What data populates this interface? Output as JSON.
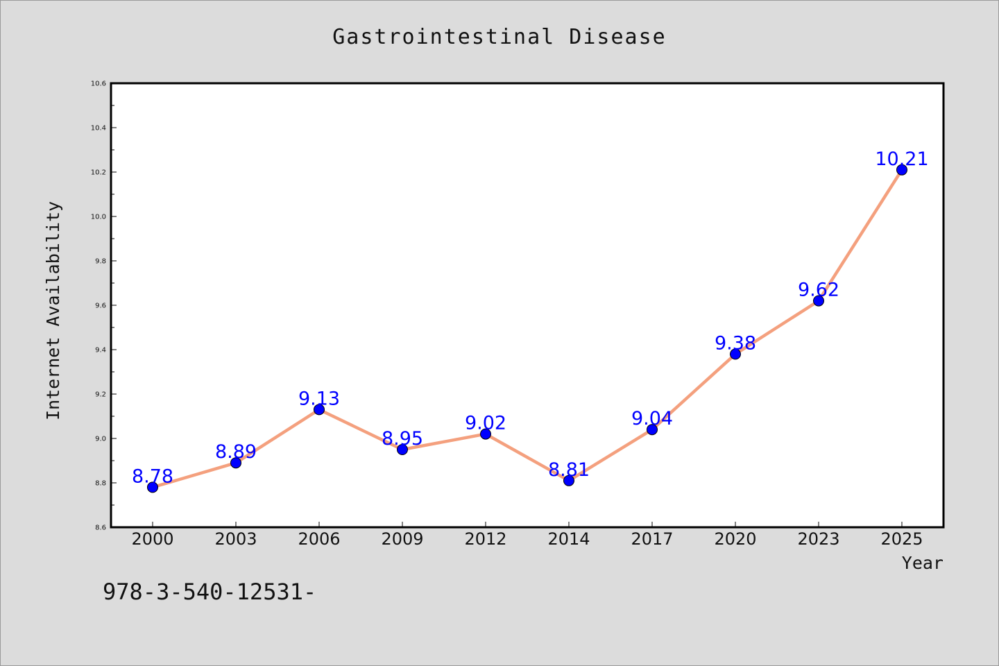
{
  "chart_data": {
    "type": "line",
    "title": "Gastrointestinal Disease",
    "xlabel": "Year",
    "ylabel": "Internet Availability",
    "categories": [
      "2000",
      "2003",
      "2006",
      "2009",
      "2012",
      "2014",
      "2017",
      "2020",
      "2023",
      "2025"
    ],
    "series": [
      {
        "values": [
          8.78,
          8.89,
          9.13,
          8.95,
          9.02,
          8.81,
          9.04,
          9.38,
          9.62,
          10.21
        ],
        "data_labels": [
          "8.78",
          "8.89",
          "9.13",
          "8.95",
          "9.02",
          "8.81",
          "9.04",
          "9.38",
          "9.62",
          "10.21"
        ],
        "line_color": "#f4a07e",
        "marker_color": "#0000ff"
      }
    ],
    "ylim": [
      8.6,
      10.6
    ],
    "yticks": [
      "8.6",
      "8.8",
      "9.0",
      "9.2",
      "9.4",
      "9.6",
      "9.8",
      "10.0",
      "10.2",
      "10.4",
      "10.6"
    ],
    "grid": false,
    "legend": "none"
  },
  "footnote": "978-3-540-12531-",
  "colors": {
    "background": "#dcdcdc",
    "plot_area": "#ffffff",
    "axes": "#000000",
    "line": "#f4a07e",
    "marker": "#0000ff",
    "data_label": "#0000ff"
  }
}
